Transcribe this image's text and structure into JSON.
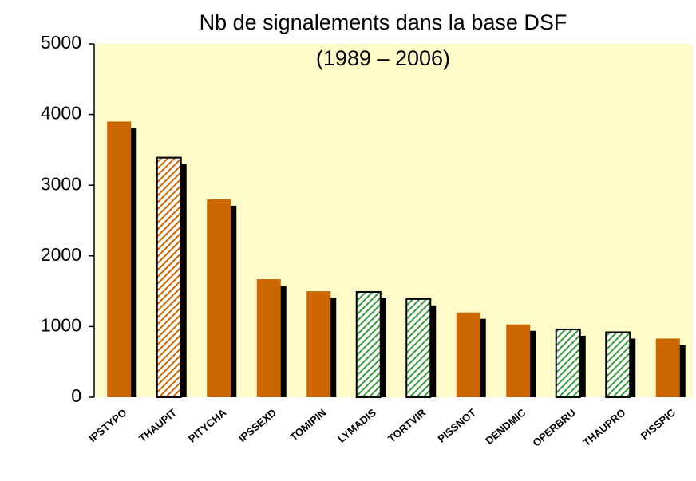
{
  "chart_data": {
    "type": "bar",
    "title": "Nb de signalements dans la base DSF",
    "subtitle": "(1989 – 2006)",
    "categories": [
      "IPSTYPO",
      "THAUPIT",
      "PITYCHA",
      "IPSSEXD",
      "TOMIPIN",
      "LYMADIS",
      "TORTVIR",
      "PISSNOT",
      "DENDMIC",
      "OPERBRU",
      "THAUPRO",
      "PISSPIC"
    ],
    "values": [
      3900,
      3390,
      2800,
      1670,
      1500,
      1490,
      1390,
      1200,
      1030,
      960,
      920,
      830
    ],
    "colors": [
      "#cc6600",
      "#cc6600",
      "#cc6600",
      "#cc6600",
      "#cc6600",
      "#3a9a3a",
      "#3a9a3a",
      "#cc6600",
      "#cc6600",
      "#3a9a3a",
      "#3a9a3a",
      "#cc6600"
    ],
    "hatched": [
      false,
      true,
      false,
      false,
      false,
      true,
      true,
      false,
      false,
      true,
      true,
      false
    ],
    "background": "#fffbc8",
    "ylim": [
      0,
      5000
    ],
    "yticks": [
      0,
      1000,
      2000,
      3000,
      4000,
      5000
    ],
    "grid": false
  }
}
